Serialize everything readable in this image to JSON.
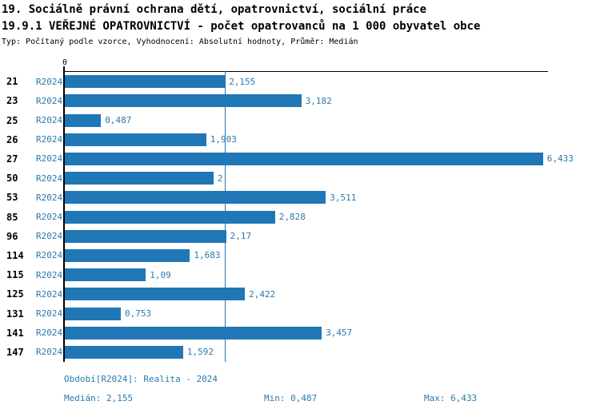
{
  "header": {
    "title_line1": "19. Sociálně právní ochrana dětí, opatrovnictví, sociální práce",
    "title_line2": "19.9.1 VEŘEJNÉ OPATROVNICTVÍ - počet opatrovanců na 1 000 obyvatel obce",
    "subtitle": "Typ: Počítaný podle vzorce, Vyhodnocení: Absolutní hodnoty, Průměr: Medián"
  },
  "chart_data": {
    "type": "bar",
    "orientation": "horizontal",
    "title": "19.9.1 VEŘEJNÉ OPATROVNICTVÍ - počet opatrovanců na 1 000 obyvatel obce",
    "categories": [
      "21",
      "23",
      "25",
      "26",
      "27",
      "50",
      "53",
      "85",
      "96",
      "114",
      "115",
      "125",
      "131",
      "141",
      "147"
    ],
    "series": [
      {
        "name": "R2024",
        "values": [
          2.155,
          3.182,
          0.487,
          1.903,
          6.433,
          2,
          3.511,
          2.828,
          2.17,
          1.683,
          1.09,
          2.422,
          0.753,
          3.457,
          1.592
        ],
        "value_labels": [
          "2,155",
          "3,182",
          "0,487",
          "1,903",
          "6,433",
          "2",
          "3,511",
          "2,828",
          "2,17",
          "1,683",
          "1,09",
          "2,422",
          "0,753",
          "3,457",
          "1,592"
        ]
      }
    ],
    "x_axis": {
      "zero_label": "0",
      "xlim": [
        0,
        6.5
      ]
    },
    "median_line": {
      "value": 2.155
    },
    "bar_color": "#2077b5",
    "grid": false,
    "legend": false
  },
  "footer": {
    "period": "Období[R2024]: Realita - 2024",
    "median": "Medián: 2,155",
    "min": "Min: 0,487",
    "max": "Max: 6,433"
  },
  "colors": {
    "bar": "#2077b5",
    "accent_text": "#2b79ae",
    "title_text": "#000000"
  }
}
